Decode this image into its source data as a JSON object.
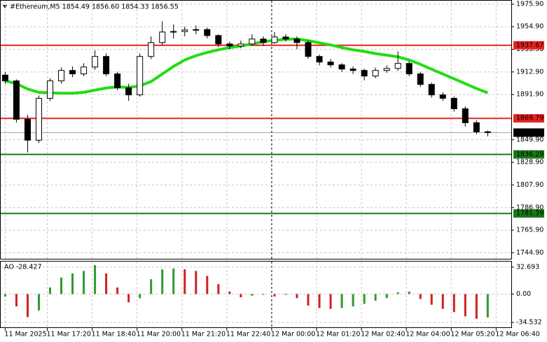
{
  "chart_data": {
    "type": "candlestick",
    "title": "#Ethereum,M5  1854.49 1856.60 1854.33 1856.55",
    "ylim": [
      1739.3,
      1979.1
    ],
    "yticks": [
      {
        "value": 1975.9,
        "label": "1975.90"
      },
      {
        "value": 1954.9,
        "label": "1954.90"
      },
      {
        "value": 1933.9,
        "label": "1933.90"
      },
      {
        "value": 1912.9,
        "label": "1912.90"
      },
      {
        "value": 1891.9,
        "label": "1891.90"
      },
      {
        "value": 1849.9,
        "label": "1849.90"
      },
      {
        "value": 1828.9,
        "label": "1828.90"
      },
      {
        "value": 1807.9,
        "label": "1807.90"
      },
      {
        "value": 1786.9,
        "label": "1786.90"
      },
      {
        "value": 1765.9,
        "label": "1765.90"
      },
      {
        "value": 1744.9,
        "label": "1744.90"
      }
    ],
    "xlim": [
      -0.4,
      45.1
    ],
    "xticks": [
      {
        "value": 0,
        "label": "11 Mar 2025"
      },
      {
        "value": 3.75,
        "label": "11 Mar 17:20"
      },
      {
        "value": 7.75,
        "label": "11 Mar 18:40"
      },
      {
        "value": 11.75,
        "label": "11 Mar 20:00"
      },
      {
        "value": 15.75,
        "label": "11 Mar 21:20"
      },
      {
        "value": 19.75,
        "label": "11 Mar 22:40"
      },
      {
        "value": 23.75,
        "label": "12 Mar 00:00"
      },
      {
        "value": 27.75,
        "label": "12 Mar 01:20"
      },
      {
        "value": 31.75,
        "label": "12 Mar 02:40"
      },
      {
        "value": 35.75,
        "label": "12 Mar 04:00"
      },
      {
        "value": 39.75,
        "label": "12 Mar 05:20"
      },
      {
        "value": 43.75,
        "label": "12 Mar 06:40"
      }
    ],
    "separator_tick": 6,
    "grid": true,
    "up_color": "#ffffff",
    "down_color": "#000000",
    "ohlc": [
      [
        1910,
        1913,
        1902,
        1904.6
      ],
      [
        1904.6,
        1906,
        1866,
        1868.9
      ],
      [
        1868.9,
        1873,
        1838,
        1849.5
      ],
      [
        1849.5,
        1891,
        1847,
        1888.4
      ],
      [
        1888.4,
        1907,
        1886,
        1904.6
      ],
      [
        1904.6,
        1917,
        1902,
        1914.3
      ],
      [
        1914.3,
        1918,
        1908,
        1911.1
      ],
      [
        1911.1,
        1921,
        1909,
        1917.5
      ],
      [
        1917.5,
        1933,
        1915,
        1927.3
      ],
      [
        1927.3,
        1930,
        1909,
        1911.1
      ],
      [
        1911.1,
        1913,
        1896,
        1898.1
      ],
      [
        1898.1,
        1902,
        1886,
        1891.6
      ],
      [
        1891.6,
        1930,
        1890,
        1927.3
      ],
      [
        1927.3,
        1946,
        1925,
        1940.2
      ],
      [
        1940.2,
        1960,
        1938,
        1950.0
      ],
      [
        1950.0,
        1957,
        1944,
        1950.5
      ],
      [
        1950.5,
        1955,
        1946,
        1951.9
      ],
      [
        1951.9,
        1956,
        1948,
        1952.3
      ],
      [
        1952.3,
        1954,
        1944,
        1946.7
      ],
      [
        1946.7,
        1948,
        1936,
        1938.9
      ],
      [
        1938.9,
        1941,
        1934,
        1937.0
      ],
      [
        1937.0,
        1942,
        1935,
        1938.9
      ],
      [
        1938.9,
        1948,
        1937,
        1943.5
      ],
      [
        1943.5,
        1946,
        1937,
        1940.2
      ],
      [
        1940.2,
        1950,
        1939,
        1945.4
      ],
      [
        1945.4,
        1948,
        1941,
        1943.5
      ],
      [
        1943.5,
        1946,
        1934,
        1940.2
      ],
      [
        1940.2,
        1942,
        1925,
        1927.3
      ],
      [
        1927.3,
        1929,
        1919,
        1922.1
      ],
      [
        1922.1,
        1925,
        1917,
        1919.5
      ],
      [
        1919.5,
        1921,
        1913,
        1915.6
      ],
      [
        1915.6,
        1918,
        1911,
        1914.3
      ],
      [
        1914.3,
        1916,
        1905,
        1909.1
      ],
      [
        1909.1,
        1917,
        1907,
        1914.3
      ],
      [
        1914.3,
        1919,
        1912,
        1916.2
      ],
      [
        1916.2,
        1932,
        1914,
        1920.8
      ],
      [
        1920.8,
        1923,
        1909,
        1911.1
      ],
      [
        1911.1,
        1913,
        1899,
        1901.3
      ],
      [
        1901.3,
        1903,
        1889,
        1891.6
      ],
      [
        1891.6,
        1894,
        1886,
        1888.4
      ],
      [
        1888.4,
        1890,
        1876,
        1878.7
      ],
      [
        1878.7,
        1881,
        1862,
        1865.7
      ],
      [
        1865.7,
        1868,
        1855,
        1857.3
      ],
      [
        1857.3,
        1858.5,
        1853,
        1856.55
      ]
    ],
    "moving_average": {
      "color": "#22dd11",
      "values": [
        1904.6,
        1902,
        1897,
        1894,
        1893.5,
        1893.2,
        1893.2,
        1894,
        1896,
        1898,
        1899,
        1898.5,
        1900,
        1904,
        1911,
        1918,
        1924,
        1928,
        1931,
        1933.5,
        1935.5,
        1937,
        1939,
        1941,
        1942.3,
        1943.3,
        1943.5,
        1942,
        1940,
        1938,
        1935.5,
        1933.5,
        1932,
        1930,
        1928.5,
        1927,
        1924,
        1920,
        1915.5,
        1911,
        1906.5,
        1902,
        1897.5,
        1893.5
      ]
    },
    "levels": [
      {
        "value": 1937.67,
        "color": "#e8231f"
      },
      {
        "value": 1869.79,
        "color": "#e8231f"
      },
      {
        "value": 1836.29,
        "color": "#1a7a1a"
      },
      {
        "value": 1781.39,
        "color": "#1a7a1a"
      }
    ],
    "current_price": {
      "value": 1856.55,
      "color": "#000000"
    },
    "oscillator": {
      "title": "AO -28.427",
      "ylim": [
        -40.4,
        39.4
      ],
      "yticks": [
        32.693,
        {
          "value": 0,
          "label": "0.00"
        },
        -34.532
      ],
      "up_color": "#2e9a2e",
      "down_color": "#d02020",
      "values": [
        -3,
        -15,
        -28,
        -20,
        8,
        20,
        25,
        28,
        35,
        25,
        8,
        -10,
        -5,
        18,
        30,
        31,
        30,
        28,
        22,
        12,
        3,
        -4,
        -2,
        -1,
        -3,
        -1,
        -5,
        -14,
        -17,
        -18,
        -17,
        -15,
        -12,
        -8,
        -5,
        2,
        3,
        -6,
        -13,
        -18,
        -22,
        -27,
        -30,
        -28.427
      ]
    }
  }
}
